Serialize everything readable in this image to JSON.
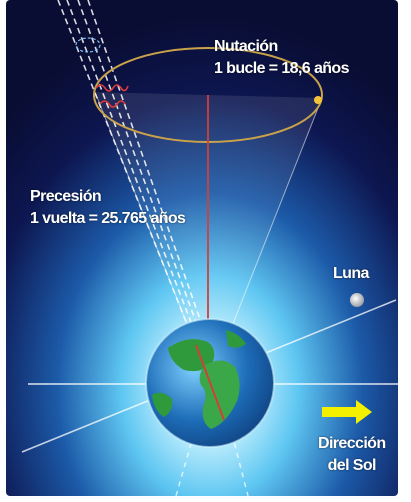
{
  "labels": {
    "nutacion_title": "Nutación",
    "nutacion_detail": "1 bucle = 18,6 años",
    "precesion_title": "Precesión",
    "precesion_detail": "1 vuelta = 25.765 años",
    "luna": "Luna",
    "direccion_line1": "Dirección",
    "direccion_line2": "del Sol"
  },
  "colors": {
    "space_dark": "#0a0f3a",
    "space_glow": "#6fd3ff",
    "ellipse": "#c9a24a",
    "axis": "#d0403a",
    "arrow": "#f5f000",
    "ocean": "#1f6fb8",
    "land": "#2f9a3c"
  }
}
